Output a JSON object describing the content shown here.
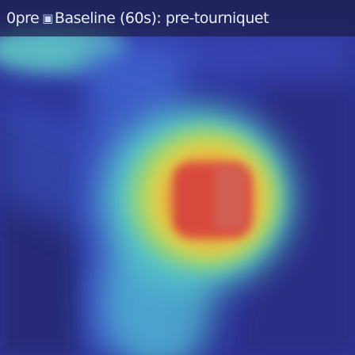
{
  "title": {
    "frame_label": "0pre",
    "separator": "▣",
    "stage_text": "Baseline (60s): pre-tourniquet"
  },
  "colors": {
    "background_low": "#2b3090",
    "hotspot_core": "#d84a3e",
    "hotspot_mid": "#e0d84a",
    "cool_band": "#54c6c8"
  }
}
